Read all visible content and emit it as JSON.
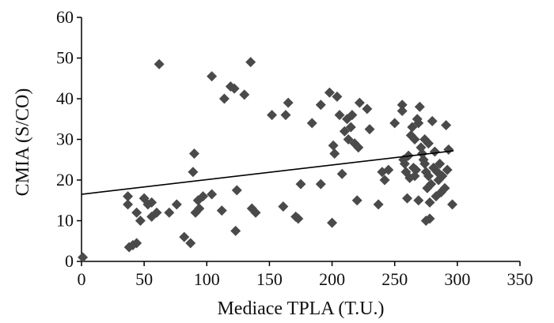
{
  "chart_data": {
    "type": "scatter",
    "title": "",
    "xlabel": "Mediace TPLA (T.U.)",
    "ylabel": "CMIA (S/CO)",
    "xlim": [
      0,
      350
    ],
    "ylim": [
      0,
      60
    ],
    "x_ticks": [
      "0",
      "50",
      "100",
      "150",
      "200",
      "250",
      "300",
      "350"
    ],
    "y_ticks": [
      "0",
      "10",
      "20",
      "30",
      "40",
      "50",
      "60"
    ],
    "grid": false,
    "legend": "none",
    "marker": "diamond",
    "colors": {
      "marker": "#4a4a4a",
      "axis": "#000000",
      "trend": "#000000"
    },
    "trendline": {
      "x": [
        0,
        297
      ],
      "y": [
        16.5,
        27.2
      ]
    },
    "points": [
      [
        1,
        1
      ],
      [
        37,
        16
      ],
      [
        37,
        14
      ],
      [
        38,
        3.5
      ],
      [
        41,
        4
      ],
      [
        44,
        4.5
      ],
      [
        44,
        12
      ],
      [
        47,
        10
      ],
      [
        50,
        15.5
      ],
      [
        53,
        14
      ],
      [
        56,
        11
      ],
      [
        56,
        14.5
      ],
      [
        60,
        12
      ],
      [
        62,
        48.5
      ],
      [
        70,
        12
      ],
      [
        76,
        14
      ],
      [
        82,
        6
      ],
      [
        87,
        4.5
      ],
      [
        89,
        22
      ],
      [
        90,
        26.5
      ],
      [
        91,
        12
      ],
      [
        93,
        15
      ],
      [
        94,
        13
      ],
      [
        97,
        16
      ],
      [
        104,
        45.5
      ],
      [
        104,
        16.5
      ],
      [
        112,
        12.5
      ],
      [
        114,
        40
      ],
      [
        119,
        43
      ],
      [
        122,
        42.5
      ],
      [
        123,
        7.5
      ],
      [
        124,
        17.5
      ],
      [
        130,
        41
      ],
      [
        135,
        49
      ],
      [
        136,
        13
      ],
      [
        139,
        12
      ],
      [
        152,
        36
      ],
      [
        161,
        13.5
      ],
      [
        163,
        36
      ],
      [
        165,
        39
      ],
      [
        171,
        11
      ],
      [
        173,
        10.5
      ],
      [
        175,
        19
      ],
      [
        184,
        34
      ],
      [
        191,
        38.5
      ],
      [
        191,
        19
      ],
      [
        198,
        41.5
      ],
      [
        200,
        9.5
      ],
      [
        201,
        28.5
      ],
      [
        202,
        26.5
      ],
      [
        204,
        40.5
      ],
      [
        206,
        36
      ],
      [
        208,
        21.5
      ],
      [
        210,
        32
      ],
      [
        212,
        35
      ],
      [
        213,
        30
      ],
      [
        215,
        33
      ],
      [
        216,
        36
      ],
      [
        218,
        29
      ],
      [
        220,
        15
      ],
      [
        221,
        28
      ],
      [
        222,
        39
      ],
      [
        228,
        37.5
      ],
      [
        230,
        32.5
      ],
      [
        237,
        14
      ],
      [
        240,
        22
      ],
      [
        242,
        20
      ],
      [
        245,
        22.5
      ],
      [
        250,
        34
      ],
      [
        256,
        38.5
      ],
      [
        256,
        37
      ],
      [
        257,
        25
      ],
      [
        258,
        24
      ],
      [
        259,
        22
      ],
      [
        260,
        15.5
      ],
      [
        261,
        26
      ],
      [
        262,
        20.5
      ],
      [
        263,
        31
      ],
      [
        264,
        33
      ],
      [
        265,
        23
      ],
      [
        266,
        21
      ],
      [
        266,
        30
      ],
      [
        267,
        22.5
      ],
      [
        268,
        35
      ],
      [
        269,
        34
      ],
      [
        269,
        15
      ],
      [
        270,
        38
      ],
      [
        271,
        28
      ],
      [
        272,
        26.5
      ],
      [
        273,
        25
      ],
      [
        274,
        30
      ],
      [
        274,
        24
      ],
      [
        275,
        10
      ],
      [
        275,
        22
      ],
      [
        276,
        18
      ],
      [
        277,
        29
      ],
      [
        277,
        21
      ],
      [
        278,
        14.5
      ],
      [
        278,
        10.5
      ],
      [
        279,
        19
      ],
      [
        280,
        34.5
      ],
      [
        281,
        23
      ],
      [
        282,
        27
      ],
      [
        283,
        16
      ],
      [
        284,
        22
      ],
      [
        285,
        20
      ],
      [
        286,
        24
      ],
      [
        287,
        17
      ],
      [
        288,
        21
      ],
      [
        290,
        18
      ],
      [
        291,
        33.5
      ],
      [
        292,
        22.5
      ],
      [
        293,
        27.5
      ],
      [
        296,
        14
      ]
    ]
  }
}
